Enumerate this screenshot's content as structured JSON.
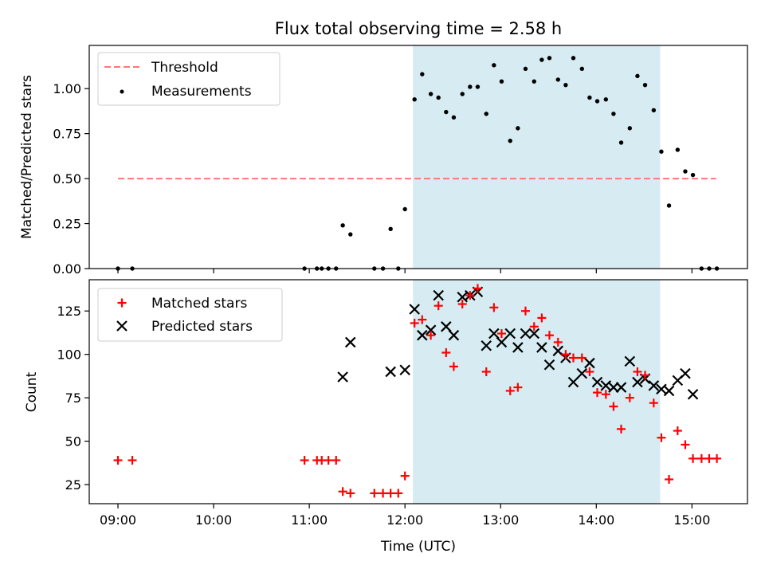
{
  "title": "Flux total observing time = 2.58 h",
  "colors": {
    "threshold": "#ff7777",
    "measurement": "#000000",
    "matched": "#ff0000",
    "predicted": "#000000",
    "shade": "#add8e6"
  },
  "chart_data": [
    {
      "type": "scatter",
      "panel": "top",
      "ylabel": "Matched/Predicted stars",
      "xlabel": "",
      "xlim": [
        8.7,
        15.58
      ],
      "ylim": [
        0,
        1.24
      ],
      "yticks": [
        0,
        0.25,
        0.5,
        0.75,
        1.0
      ],
      "yticklabels": [
        "0.00",
        "0.25",
        "0.50",
        "0.75",
        "1.00"
      ],
      "shaded_region": [
        12.083,
        14.667
      ],
      "legend_position": "upper-left",
      "threshold": {
        "name": "Threshold",
        "y": 0.5,
        "x_range": [
          9.0,
          15.25
        ]
      },
      "series": [
        {
          "name": "Measurements",
          "points": [
            [
              9.0,
              0.0
            ],
            [
              9.15,
              0.0
            ],
            [
              10.95,
              0.0
            ],
            [
              11.08,
              0.0
            ],
            [
              11.13,
              0.0
            ],
            [
              11.2,
              0.0
            ],
            [
              11.28,
              0.0
            ],
            [
              11.35,
              0.24
            ],
            [
              11.43,
              0.19
            ],
            [
              11.68,
              0.0
            ],
            [
              11.77,
              0.0
            ],
            [
              11.85,
              0.22
            ],
            [
              11.93,
              0.0
            ],
            [
              12.0,
              0.33
            ],
            [
              12.1,
              0.94
            ],
            [
              12.18,
              1.08
            ],
            [
              12.27,
              0.97
            ],
            [
              12.35,
              0.95
            ],
            [
              12.43,
              0.87
            ],
            [
              12.51,
              0.84
            ],
            [
              12.6,
              0.97
            ],
            [
              12.68,
              1.01
            ],
            [
              12.76,
              1.01
            ],
            [
              12.85,
              0.86
            ],
            [
              12.93,
              1.13
            ],
            [
              13.01,
              1.04
            ],
            [
              13.1,
              0.71
            ],
            [
              13.18,
              0.78
            ],
            [
              13.26,
              1.11
            ],
            [
              13.35,
              1.04
            ],
            [
              13.43,
              1.16
            ],
            [
              13.51,
              1.17
            ],
            [
              13.6,
              1.05
            ],
            [
              13.68,
              1.02
            ],
            [
              13.76,
              1.17
            ],
            [
              13.85,
              1.11
            ],
            [
              13.93,
              0.95
            ],
            [
              14.01,
              0.93
            ],
            [
              14.1,
              0.94
            ],
            [
              14.18,
              0.86
            ],
            [
              14.26,
              0.7
            ],
            [
              14.35,
              0.78
            ],
            [
              14.43,
              1.07
            ],
            [
              14.51,
              1.02
            ],
            [
              14.6,
              0.88
            ],
            [
              14.68,
              0.65
            ],
            [
              14.76,
              0.35
            ],
            [
              14.85,
              0.66
            ],
            [
              14.93,
              0.54
            ],
            [
              15.01,
              0.52
            ],
            [
              15.1,
              0.0
            ],
            [
              15.18,
              0.0
            ],
            [
              15.26,
              0.0
            ]
          ]
        }
      ]
    },
    {
      "type": "scatter",
      "panel": "bottom",
      "ylabel": "Count",
      "xlabel": "Time (UTC)",
      "xlim": [
        8.7,
        15.58
      ],
      "ylim": [
        14,
        143
      ],
      "yticks": [
        25,
        50,
        75,
        100,
        125
      ],
      "xticks": [
        9,
        10,
        11,
        12,
        13,
        14,
        15
      ],
      "xticklabels": [
        "09:00",
        "10:00",
        "11:00",
        "12:00",
        "13:00",
        "14:00",
        "15:00"
      ],
      "shaded_region": [
        12.083,
        14.667
      ],
      "legend_position": "upper-left",
      "series": [
        {
          "name": "Matched stars",
          "marker": "plus",
          "points": [
            [
              9.0,
              39
            ],
            [
              9.15,
              39
            ],
            [
              10.95,
              39
            ],
            [
              11.08,
              39
            ],
            [
              11.13,
              39
            ],
            [
              11.2,
              39
            ],
            [
              11.28,
              39
            ],
            [
              11.35,
              21
            ],
            [
              11.43,
              20
            ],
            [
              11.68,
              20
            ],
            [
              11.77,
              20
            ],
            [
              11.85,
              20
            ],
            [
              11.93,
              20
            ],
            [
              12.0,
              30
            ],
            [
              12.1,
              118
            ],
            [
              12.18,
              120
            ],
            [
              12.27,
              111
            ],
            [
              12.35,
              128
            ],
            [
              12.43,
              101
            ],
            [
              12.51,
              93
            ],
            [
              12.6,
              129
            ],
            [
              12.68,
              134
            ],
            [
              12.76,
              138
            ],
            [
              12.85,
              90
            ],
            [
              12.93,
              127
            ],
            [
              13.01,
              112
            ],
            [
              13.1,
              79
            ],
            [
              13.18,
              81
            ],
            [
              13.26,
              125
            ],
            [
              13.35,
              116
            ],
            [
              13.43,
              121
            ],
            [
              13.51,
              111
            ],
            [
              13.6,
              107
            ],
            [
              13.68,
              100
            ],
            [
              13.76,
              98
            ],
            [
              13.85,
              98
            ],
            [
              13.93,
              90
            ],
            [
              14.01,
              78
            ],
            [
              14.1,
              77
            ],
            [
              14.18,
              70
            ],
            [
              14.26,
              57
            ],
            [
              14.35,
              75
            ],
            [
              14.43,
              90
            ],
            [
              14.51,
              88
            ],
            [
              14.6,
              72
            ],
            [
              14.68,
              52
            ],
            [
              14.76,
              28
            ],
            [
              14.85,
              56
            ],
            [
              14.93,
              48
            ],
            [
              15.01,
              40
            ],
            [
              15.1,
              40
            ],
            [
              15.18,
              40
            ],
            [
              15.26,
              40
            ]
          ]
        },
        {
          "name": "Predicted stars",
          "marker": "x",
          "points": [
            [
              11.35,
              87
            ],
            [
              11.43,
              107
            ],
            [
              11.85,
              90
            ],
            [
              12.0,
              91
            ],
            [
              12.1,
              126
            ],
            [
              12.18,
              111
            ],
            [
              12.27,
              114
            ],
            [
              12.35,
              134
            ],
            [
              12.43,
              116
            ],
            [
              12.51,
              111
            ],
            [
              12.6,
              133
            ],
            [
              12.68,
              134
            ],
            [
              12.76,
              136
            ],
            [
              12.85,
              105
            ],
            [
              12.93,
              112
            ],
            [
              13.01,
              107
            ],
            [
              13.1,
              112
            ],
            [
              13.18,
              104
            ],
            [
              13.26,
              112
            ],
            [
              13.35,
              112
            ],
            [
              13.43,
              104
            ],
            [
              13.51,
              94
            ],
            [
              13.6,
              102
            ],
            [
              13.68,
              98
            ],
            [
              13.76,
              84
            ],
            [
              13.85,
              89
            ],
            [
              13.93,
              95
            ],
            [
              14.01,
              84
            ],
            [
              14.1,
              82
            ],
            [
              14.18,
              81
            ],
            [
              14.26,
              81
            ],
            [
              14.35,
              96
            ],
            [
              14.43,
              84
            ],
            [
              14.51,
              86
            ],
            [
              14.6,
              82
            ],
            [
              14.68,
              80
            ],
            [
              14.76,
              79
            ],
            [
              14.85,
              85
            ],
            [
              14.93,
              89
            ],
            [
              15.01,
              77
            ]
          ]
        }
      ]
    }
  ]
}
